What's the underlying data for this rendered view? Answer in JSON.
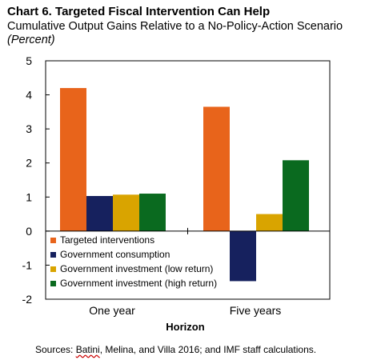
{
  "title": "Chart 6. Targeted Fiscal Intervention Can Help",
  "subtitle": "Cumulative Output Gains Relative to a No-Policy-Action Scenario",
  "units": "(Percent)",
  "source_prefix": "Sources: ",
  "source_name": "Batini",
  "source_rest": ", Melina, and Villa 2016; and IMF staff calculations.",
  "chart_data": {
    "type": "bar",
    "categories": [
      "One year",
      "Five years"
    ],
    "series": [
      {
        "name": "Targeted interventions",
        "color": "#E8641B",
        "values": [
          4.2,
          3.65
        ]
      },
      {
        "name": "Government consumption",
        "color": "#16215E",
        "values": [
          1.03,
          -1.47
        ]
      },
      {
        "name": "Government investment (low return)",
        "color": "#D9A400",
        "values": [
          1.07,
          0.5
        ]
      },
      {
        "name": "Government investment (high return)",
        "color": "#0A6A1F",
        "values": [
          1.1,
          2.08
        ]
      }
    ],
    "xlabel": "Horizon",
    "ylabel": "",
    "ylim": [
      -2,
      5
    ],
    "yticks": [
      "-2",
      "-1",
      "0",
      "1",
      "2",
      "3",
      "4",
      "5"
    ],
    "legend": "inside-bottom-left",
    "grid": false
  }
}
